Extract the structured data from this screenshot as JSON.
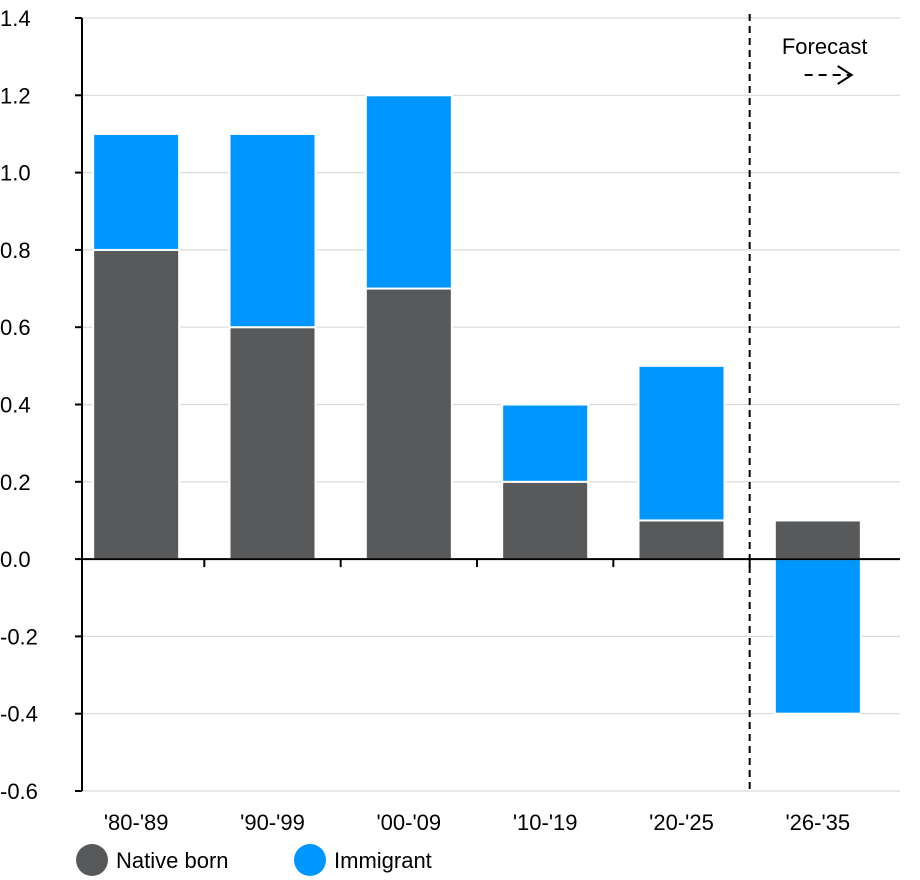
{
  "chart_data": {
    "type": "bar",
    "stacked": true,
    "categories": [
      "'80-'89",
      "'90-'99",
      "'00-'09",
      "'10-'19",
      "'20-'25",
      "'26-'35"
    ],
    "series": [
      {
        "name": "Native born",
        "color": "#58595b",
        "values": [
          0.8,
          0.6,
          0.7,
          0.2,
          0.1,
          0.1
        ]
      },
      {
        "name": "Immigrant",
        "color": "#0096ff",
        "values": [
          0.3,
          0.5,
          0.5,
          0.2,
          0.4,
          -0.4
        ]
      }
    ],
    "ylim": [
      -0.6,
      1.4
    ],
    "yticks": [
      "-0.6",
      "-0.4",
      "-0.2",
      "0.0",
      "0.2",
      "0.4",
      "0.6",
      "0.8",
      "1.0",
      "1.2",
      "1.4"
    ],
    "grid": true,
    "legend_position": "bottom-left",
    "forecast_label": "Forecast",
    "forecast_start_index": 5
  }
}
